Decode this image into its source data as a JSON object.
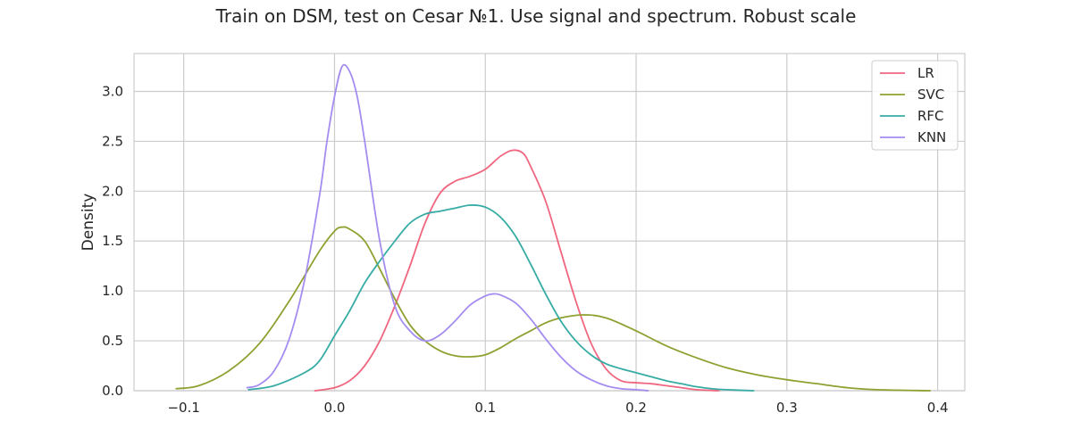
{
  "chart_data": {
    "type": "line",
    "title": "Train on DSM, test on Cesar №1. Use signal and spectrum. Robust scale",
    "xlabel": "",
    "ylabel": "Density",
    "xlim": [
      -0.133,
      0.418
    ],
    "ylim": [
      0,
      3.38
    ],
    "x_ticks": [
      -0.1,
      0.0,
      0.1,
      0.2,
      0.3,
      0.4
    ],
    "x_tick_labels": [
      "−0.1",
      "0.0",
      "0.1",
      "0.2",
      "0.3",
      "0.4"
    ],
    "y_ticks": [
      0.0,
      0.5,
      1.0,
      1.5,
      2.0,
      2.5,
      3.0
    ],
    "y_tick_labels": [
      "0.0",
      "0.5",
      "1.0",
      "1.5",
      "2.0",
      "2.5",
      "3.0"
    ],
    "grid": true,
    "legend_position": "top-right",
    "series": [
      {
        "name": "LR",
        "color": "#f0667f",
        "points": [
          [
            -0.013,
            0.0
          ],
          [
            0.0,
            0.03
          ],
          [
            0.01,
            0.1
          ],
          [
            0.02,
            0.25
          ],
          [
            0.03,
            0.5
          ],
          [
            0.04,
            0.85
          ],
          [
            0.05,
            1.25
          ],
          [
            0.06,
            1.68
          ],
          [
            0.07,
            1.98
          ],
          [
            0.08,
            2.1
          ],
          [
            0.09,
            2.15
          ],
          [
            0.1,
            2.22
          ],
          [
            0.11,
            2.35
          ],
          [
            0.118,
            2.41
          ],
          [
            0.125,
            2.38
          ],
          [
            0.13,
            2.25
          ],
          [
            0.14,
            1.9
          ],
          [
            0.15,
            1.4
          ],
          [
            0.16,
            0.9
          ],
          [
            0.17,
            0.48
          ],
          [
            0.18,
            0.22
          ],
          [
            0.19,
            0.1
          ],
          [
            0.2,
            0.08
          ],
          [
            0.21,
            0.07
          ],
          [
            0.22,
            0.05
          ],
          [
            0.23,
            0.03
          ],
          [
            0.24,
            0.01
          ],
          [
            0.255,
            0.0
          ]
        ]
      },
      {
        "name": "SVC",
        "color": "#90a030",
        "points": [
          [
            -0.105,
            0.02
          ],
          [
            -0.09,
            0.05
          ],
          [
            -0.07,
            0.2
          ],
          [
            -0.05,
            0.47
          ],
          [
            -0.03,
            0.9
          ],
          [
            -0.01,
            1.4
          ],
          [
            0.0,
            1.6
          ],
          [
            0.005,
            1.64
          ],
          [
            0.01,
            1.62
          ],
          [
            0.02,
            1.5
          ],
          [
            0.03,
            1.22
          ],
          [
            0.04,
            0.92
          ],
          [
            0.05,
            0.66
          ],
          [
            0.06,
            0.5
          ],
          [
            0.07,
            0.4
          ],
          [
            0.08,
            0.35
          ],
          [
            0.09,
            0.34
          ],
          [
            0.1,
            0.36
          ],
          [
            0.11,
            0.43
          ],
          [
            0.12,
            0.52
          ],
          [
            0.13,
            0.6
          ],
          [
            0.14,
            0.68
          ],
          [
            0.15,
            0.73
          ],
          [
            0.165,
            0.76
          ],
          [
            0.18,
            0.73
          ],
          [
            0.2,
            0.6
          ],
          [
            0.22,
            0.45
          ],
          [
            0.24,
            0.33
          ],
          [
            0.26,
            0.23
          ],
          [
            0.28,
            0.16
          ],
          [
            0.3,
            0.11
          ],
          [
            0.32,
            0.07
          ],
          [
            0.34,
            0.03
          ],
          [
            0.36,
            0.01
          ],
          [
            0.395,
            0.0
          ]
        ]
      },
      {
        "name": "RFC",
        "color": "#36aca4",
        "points": [
          [
            -0.057,
            0.01
          ],
          [
            -0.04,
            0.05
          ],
          [
            -0.02,
            0.18
          ],
          [
            -0.01,
            0.3
          ],
          [
            0.0,
            0.55
          ],
          [
            0.01,
            0.8
          ],
          [
            0.02,
            1.08
          ],
          [
            0.03,
            1.3
          ],
          [
            0.04,
            1.5
          ],
          [
            0.05,
            1.68
          ],
          [
            0.06,
            1.77
          ],
          [
            0.07,
            1.8
          ],
          [
            0.08,
            1.83
          ],
          [
            0.09,
            1.86
          ],
          [
            0.1,
            1.84
          ],
          [
            0.11,
            1.74
          ],
          [
            0.12,
            1.55
          ],
          [
            0.13,
            1.27
          ],
          [
            0.14,
            0.97
          ],
          [
            0.15,
            0.7
          ],
          [
            0.16,
            0.5
          ],
          [
            0.17,
            0.36
          ],
          [
            0.18,
            0.27
          ],
          [
            0.19,
            0.22
          ],
          [
            0.2,
            0.18
          ],
          [
            0.21,
            0.14
          ],
          [
            0.22,
            0.1
          ],
          [
            0.23,
            0.07
          ],
          [
            0.24,
            0.04
          ],
          [
            0.25,
            0.02
          ],
          [
            0.26,
            0.01
          ],
          [
            0.278,
            0.0
          ]
        ]
      },
      {
        "name": "KNN",
        "color": "#a48cf0",
        "points": [
          [
            -0.058,
            0.03
          ],
          [
            -0.05,
            0.06
          ],
          [
            -0.04,
            0.2
          ],
          [
            -0.03,
            0.52
          ],
          [
            -0.02,
            1.1
          ],
          [
            -0.01,
            1.95
          ],
          [
            -0.005,
            2.5
          ],
          [
            0.0,
            2.95
          ],
          [
            0.005,
            3.25
          ],
          [
            0.01,
            3.2
          ],
          [
            0.015,
            2.95
          ],
          [
            0.02,
            2.5
          ],
          [
            0.03,
            1.5
          ],
          [
            0.04,
            0.85
          ],
          [
            0.05,
            0.6
          ],
          [
            0.06,
            0.5
          ],
          [
            0.07,
            0.56
          ],
          [
            0.08,
            0.7
          ],
          [
            0.09,
            0.86
          ],
          [
            0.1,
            0.95
          ],
          [
            0.105,
            0.97
          ],
          [
            0.11,
            0.96
          ],
          [
            0.12,
            0.88
          ],
          [
            0.13,
            0.72
          ],
          [
            0.14,
            0.52
          ],
          [
            0.15,
            0.34
          ],
          [
            0.16,
            0.2
          ],
          [
            0.17,
            0.11
          ],
          [
            0.18,
            0.05
          ],
          [
            0.19,
            0.02
          ],
          [
            0.2,
            0.01
          ],
          [
            0.208,
            0.0
          ]
        ]
      }
    ]
  }
}
